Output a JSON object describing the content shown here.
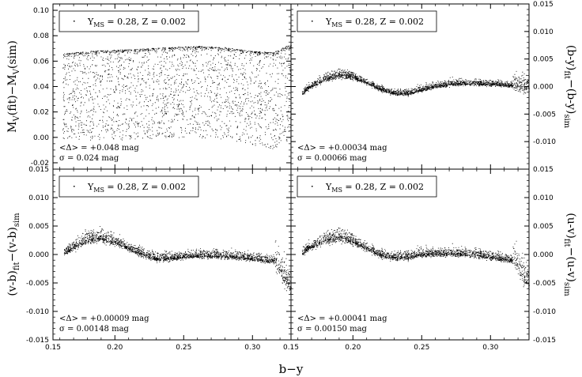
{
  "chart_data": [
    {
      "type": "scatter",
      "panel_position": "top-left",
      "ylabel_main": "M",
      "ylabel_sub1": "V",
      "ylabel_mid": "(fit)−M",
      "ylabel_sub2": "V",
      "ylabel_end": "(sim)",
      "ylabel_side": "left",
      "ylim": [
        -0.025,
        0.105
      ],
      "xlim": [
        0.155,
        0.328
      ],
      "yticks": [
        "-0.02",
        "0.00",
        "0.02",
        "0.04",
        "0.06",
        "0.08",
        "0.10"
      ],
      "ytick_values": [
        -0.02,
        0.0,
        0.02,
        0.04,
        0.06,
        0.08,
        0.1
      ],
      "ytick_side": "left",
      "legend": {
        "main": "Y",
        "sub": "MS",
        "rest": " = 0.28, Z = 0.002"
      },
      "annotation_mean": "<Δ> = +0.048 mag",
      "annotation_sigma": "σ = 0.024 mag",
      "envelope": {
        "x": [
          0.162,
          0.18,
          0.2,
          0.22,
          0.24,
          0.26,
          0.28,
          0.3,
          0.315,
          0.322,
          0.328
        ],
        "upper": [
          0.066,
          0.068,
          0.069,
          0.07,
          0.071,
          0.072,
          0.071,
          0.068,
          0.067,
          0.071,
          0.073
        ],
        "lower": [
          -0.002,
          -0.002,
          -0.002,
          -0.001,
          0.0,
          0.0,
          -0.002,
          -0.006,
          -0.009,
          -0.005,
          -0.004
        ]
      },
      "points": 2600
    },
    {
      "type": "scatter",
      "panel_position": "top-right",
      "ylabel_main": "(b-y)",
      "ylabel_sub1": "fit",
      "ylabel_mid": "−(b-y)",
      "ylabel_sub2": "sim",
      "ylabel_end": "",
      "ylabel_side": "right",
      "ylim": [
        -0.015,
        0.015
      ],
      "xlim": [
        0.155,
        0.328
      ],
      "yticks": [
        "-0.010",
        "-0.005",
        "0.000",
        "0.005",
        "0.010",
        "0.015"
      ],
      "ytick_values": [
        -0.01,
        -0.005,
        0.0,
        0.005,
        0.01,
        0.015
      ],
      "ytick_side": "right",
      "legend": {
        "main": "Y",
        "sub": "MS",
        "rest": " = 0.28, Z = 0.002"
      },
      "annotation_mean": "<Δ> = +0.00034 mag",
      "annotation_sigma": "σ = 0.00066 mag",
      "curve": {
        "x": [
          0.163,
          0.17,
          0.18,
          0.19,
          0.2,
          0.21,
          0.22,
          0.23,
          0.24,
          0.25,
          0.26,
          0.27,
          0.28,
          0.29,
          0.3,
          0.31,
          0.32,
          0.328
        ],
        "y": [
          -0.0012,
          0.0002,
          0.0015,
          0.0022,
          0.0018,
          0.0007,
          -0.0004,
          -0.0012,
          -0.0012,
          -0.0005,
          0.0001,
          0.0005,
          0.0006,
          0.0006,
          0.0005,
          0.0004,
          0.0002,
          0.0001
        ]
      },
      "spread": 0.00035,
      "points": 2400
    },
    {
      "type": "scatter",
      "panel_position": "bottom-left",
      "ylabel_main": "(v-b)",
      "ylabel_sub1": "fit",
      "ylabel_mid": "−(v-b)",
      "ylabel_sub2": "sim",
      "ylabel_end": "",
      "ylabel_side": "left",
      "ylim": [
        -0.015,
        0.015
      ],
      "xlim": [
        0.155,
        0.328
      ],
      "yticks": [
        "-0.015",
        "-0.010",
        "-0.005",
        "0.000",
        "0.005",
        "0.010",
        "0.015"
      ],
      "ytick_values": [
        -0.015,
        -0.01,
        -0.005,
        0.0,
        0.005,
        0.01,
        0.015
      ],
      "ytick_side": "left",
      "xticks": [
        "0.15",
        "0.20",
        "0.25",
        "0.30"
      ],
      "xtick_values": [
        0.15,
        0.2,
        0.25,
        0.3
      ],
      "legend": {
        "main": "Y",
        "sub": "MS",
        "rest": " = 0.28, Z = 0.002"
      },
      "annotation_mean": "<Δ> = +0.00009 mag",
      "annotation_sigma": "σ = 0.00148 mag",
      "curve": {
        "x": [
          0.162,
          0.17,
          0.18,
          0.188,
          0.2,
          0.21,
          0.22,
          0.23,
          0.24,
          0.25,
          0.26,
          0.27,
          0.28,
          0.29,
          0.3,
          0.31,
          0.318,
          0.322,
          0.328
        ],
        "y": [
          0.0002,
          0.0014,
          0.0027,
          0.0031,
          0.0023,
          0.0011,
          0.0001,
          -0.0007,
          -0.0006,
          -0.0003,
          -0.0001,
          -0.0002,
          -0.0002,
          -0.0004,
          -0.0006,
          -0.0009,
          -0.0012,
          -0.0035,
          -0.0055
        ]
      },
      "spread": 0.0005,
      "points": 2400
    },
    {
      "type": "scatter",
      "panel_position": "bottom-right",
      "ylabel_main": "(u-v)",
      "ylabel_sub1": "fit",
      "ylabel_mid": "−(u-v)",
      "ylabel_sub2": "sim",
      "ylabel_end": "",
      "ylabel_side": "right",
      "ylim": [
        -0.015,
        0.015
      ],
      "xlim": [
        0.155,
        0.328
      ],
      "yticks": [
        "-0.015",
        "-0.010",
        "-0.005",
        "0.000",
        "0.005",
        "0.010",
        "0.015"
      ],
      "ytick_values": [
        -0.015,
        -0.01,
        -0.005,
        0.0,
        0.005,
        0.01,
        0.015
      ],
      "ytick_side": "right",
      "xticks": [
        "0.15",
        "0.20",
        "0.25",
        "0.30"
      ],
      "xtick_values": [
        0.15,
        0.2,
        0.25,
        0.3
      ],
      "legend": {
        "main": "Y",
        "sub": "MS",
        "rest": " = 0.28, Z = 0.002"
      },
      "annotation_mean": "<Δ> = +0.00041 mag",
      "annotation_sigma": "σ = 0.00150 mag",
      "curve": {
        "x": [
          0.163,
          0.17,
          0.18,
          0.19,
          0.2,
          0.21,
          0.22,
          0.23,
          0.24,
          0.25,
          0.26,
          0.27,
          0.28,
          0.29,
          0.3,
          0.31,
          0.318,
          0.322,
          0.328
        ],
        "y": [
          0.0003,
          0.0015,
          0.0027,
          0.0032,
          0.0024,
          0.0011,
          0.0,
          -0.0005,
          -0.0004,
          0.0001,
          0.0002,
          0.0002,
          0.0001,
          0.0,
          -0.0004,
          -0.0007,
          -0.001,
          -0.003,
          -0.0048
        ]
      },
      "spread": 0.0005,
      "points": 2400
    }
  ],
  "xlabel": "b−y"
}
